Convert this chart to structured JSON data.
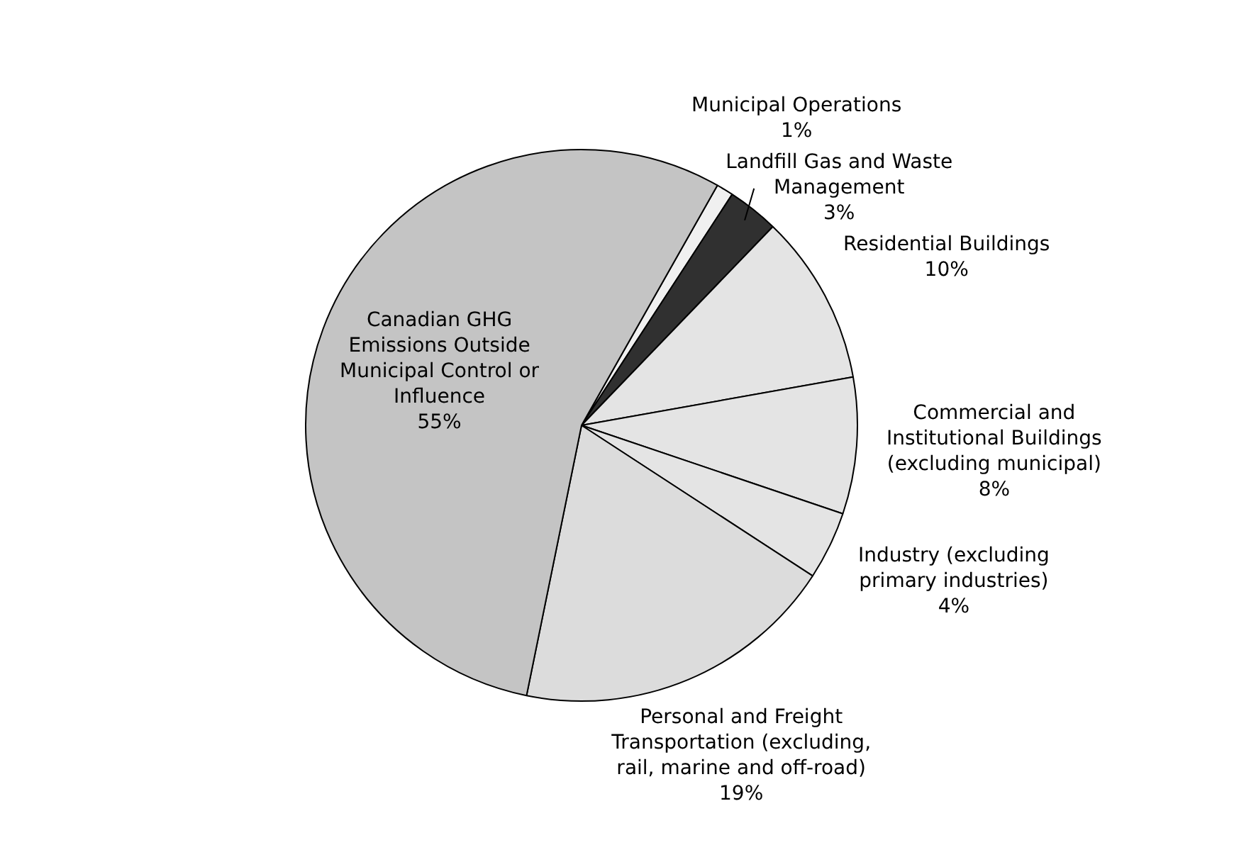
{
  "chart_data": {
    "type": "pie",
    "categories": [
      "Municipal Operations",
      "Landfill Gas and Waste Management",
      "Residential Buildings",
      "Commercial and Institutional Buildings (excluding municipal)",
      "Industry (excluding primary industries)",
      "Personal and Freight Transportation (excluding, rail, marine and off-road)",
      "Canadian GHG Emissions Outside Municipal Control or Influence"
    ],
    "values": [
      1,
      3,
      10,
      8,
      4,
      19,
      55
    ],
    "value_labels": [
      "1%",
      "3%",
      "10%",
      "8%",
      "4%",
      "19%",
      "55%"
    ],
    "colors": [
      "#f0f0f0",
      "#303030",
      "#e4e4e4",
      "#e4e4e4",
      "#e4e4e4",
      "#dcdcdc",
      "#c4c4c4"
    ],
    "legend": false
  }
}
